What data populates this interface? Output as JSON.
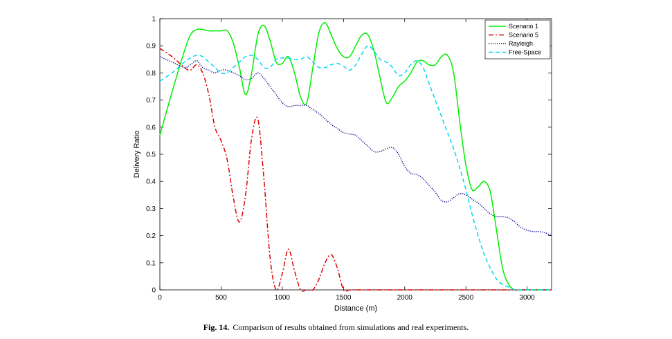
{
  "caption": {
    "label": "Fig. 14.",
    "text": "Comparison of results obtained from simulations and real experiments."
  },
  "chart_data": {
    "type": "line",
    "xlabel": "Distance (m)",
    "ylabel": "Delivery Ratio",
    "xlim": [
      0,
      3200
    ],
    "ylim": [
      0,
      1
    ],
    "xticks": [
      0,
      500,
      1000,
      1500,
      2000,
      2500,
      3000
    ],
    "yticks": [
      0,
      0.1,
      0.2,
      0.3,
      0.4,
      0.5,
      0.6,
      0.7,
      0.8,
      0.9,
      1
    ],
    "ytick_labels": [
      "0",
      "0.1",
      "0.2",
      "0.3",
      "0.4",
      "0.5",
      "0.6",
      "0.7",
      "0.8",
      "0.9",
      "1"
    ],
    "grid": false,
    "legend_position": "top-right",
    "series": [
      {
        "name": "Scenario 1",
        "color": "#00ee00",
        "style": "solid",
        "x": [
          0,
          100,
          200,
          250,
          300,
          350,
          400,
          450,
          500,
          550,
          600,
          650,
          700,
          750,
          800,
          850,
          900,
          950,
          1000,
          1050,
          1100,
          1150,
          1200,
          1250,
          1300,
          1350,
          1400,
          1450,
          1500,
          1550,
          1600,
          1650,
          1700,
          1750,
          1800,
          1850,
          1900,
          1950,
          2000,
          2050,
          2100,
          2150,
          2200,
          2250,
          2300,
          2350,
          2400,
          2450,
          2500,
          2550,
          2600,
          2650,
          2700,
          2750,
          2800,
          2850,
          2900,
          2950,
          3000,
          3050,
          3100,
          3150,
          3200
        ],
        "y": [
          0.57,
          0.73,
          0.88,
          0.94,
          0.96,
          0.96,
          0.955,
          0.955,
          0.955,
          0.955,
          0.91,
          0.82,
          0.72,
          0.8,
          0.94,
          0.975,
          0.92,
          0.84,
          0.835,
          0.86,
          0.8,
          0.71,
          0.69,
          0.82,
          0.95,
          0.985,
          0.94,
          0.89,
          0.86,
          0.86,
          0.9,
          0.94,
          0.94,
          0.88,
          0.78,
          0.69,
          0.71,
          0.75,
          0.77,
          0.8,
          0.84,
          0.845,
          0.83,
          0.83,
          0.86,
          0.865,
          0.8,
          0.62,
          0.46,
          0.37,
          0.38,
          0.4,
          0.36,
          0.22,
          0.08,
          0.02,
          0,
          0,
          0,
          0,
          0,
          0,
          0
        ]
      },
      {
        "name": "Scenario 5",
        "color": "#dd0000",
        "style": "dashdot",
        "x": [
          0,
          100,
          200,
          250,
          300,
          350,
          400,
          450,
          500,
          550,
          600,
          650,
          700,
          750,
          800,
          850,
          900,
          950,
          1000,
          1050,
          1100,
          1150,
          1200,
          1250,
          1300,
          1350,
          1400,
          1450,
          1500,
          1550,
          1600,
          1650,
          1700,
          1750,
          1800,
          1850,
          1900,
          1950,
          2000,
          2100,
          2200,
          2300,
          2400,
          2500,
          2600,
          2700,
          2800,
          2900,
          3000,
          3100,
          3200
        ],
        "y": [
          0.89,
          0.86,
          0.82,
          0.81,
          0.83,
          0.8,
          0.72,
          0.6,
          0.55,
          0.48,
          0.34,
          0.25,
          0.35,
          0.56,
          0.63,
          0.41,
          0.12,
          0,
          0.06,
          0.15,
          0.07,
          0,
          0,
          0,
          0.04,
          0.1,
          0.13,
          0.08,
          0,
          0,
          0,
          0,
          0,
          0,
          0,
          0,
          0,
          0,
          0,
          0,
          0,
          0,
          0,
          0,
          0,
          0,
          0,
          0,
          0,
          0,
          0
        ]
      },
      {
        "name": "Rayleigh",
        "color": "#000090",
        "style": "dotted",
        "x": [
          0,
          100,
          200,
          250,
          300,
          350,
          400,
          450,
          500,
          550,
          600,
          650,
          700,
          750,
          800,
          850,
          900,
          950,
          1000,
          1050,
          1100,
          1150,
          1200,
          1250,
          1300,
          1350,
          1400,
          1450,
          1500,
          1550,
          1600,
          1650,
          1700,
          1750,
          1800,
          1850,
          1900,
          1950,
          2000,
          2050,
          2100,
          2150,
          2200,
          2250,
          2300,
          2350,
          2400,
          2450,
          2500,
          2550,
          2600,
          2650,
          2700,
          2750,
          2800,
          2850,
          2900,
          2950,
          3000,
          3050,
          3100,
          3150,
          3200
        ],
        "y": [
          0.86,
          0.84,
          0.82,
          0.83,
          0.845,
          0.82,
          0.81,
          0.8,
          0.81,
          0.81,
          0.8,
          0.79,
          0.775,
          0.78,
          0.8,
          0.78,
          0.75,
          0.72,
          0.69,
          0.675,
          0.68,
          0.68,
          0.68,
          0.665,
          0.65,
          0.63,
          0.61,
          0.595,
          0.58,
          0.575,
          0.57,
          0.55,
          0.53,
          0.51,
          0.51,
          0.52,
          0.525,
          0.5,
          0.455,
          0.43,
          0.425,
          0.41,
          0.385,
          0.36,
          0.33,
          0.325,
          0.34,
          0.355,
          0.35,
          0.335,
          0.32,
          0.3,
          0.28,
          0.27,
          0.27,
          0.265,
          0.25,
          0.23,
          0.22,
          0.215,
          0.215,
          0.21,
          0.2
        ]
      },
      {
        "name": "Free-Space",
        "color": "#00d8f0",
        "style": "dashed",
        "x": [
          0,
          100,
          200,
          250,
          300,
          350,
          400,
          450,
          500,
          550,
          600,
          650,
          700,
          750,
          800,
          850,
          900,
          950,
          1000,
          1050,
          1100,
          1150,
          1200,
          1250,
          1300,
          1350,
          1400,
          1450,
          1500,
          1550,
          1600,
          1650,
          1700,
          1750,
          1800,
          1850,
          1900,
          1950,
          2000,
          2050,
          2100,
          2150,
          2200,
          2250,
          2300,
          2350,
          2400,
          2450,
          2500,
          2550,
          2600,
          2650,
          2700,
          2750,
          2800,
          2850,
          2900,
          2950,
          3000,
          3050,
          3100,
          3150,
          3200
        ],
        "y": [
          0.77,
          0.8,
          0.84,
          0.855,
          0.865,
          0.86,
          0.84,
          0.82,
          0.8,
          0.8,
          0.82,
          0.84,
          0.86,
          0.865,
          0.85,
          0.82,
          0.82,
          0.85,
          0.855,
          0.855,
          0.85,
          0.85,
          0.86,
          0.84,
          0.82,
          0.82,
          0.83,
          0.835,
          0.825,
          0.81,
          0.83,
          0.87,
          0.9,
          0.88,
          0.85,
          0.84,
          0.82,
          0.79,
          0.8,
          0.83,
          0.845,
          0.82,
          0.76,
          0.7,
          0.64,
          0.58,
          0.52,
          0.45,
          0.37,
          0.28,
          0.2,
          0.13,
          0.08,
          0.04,
          0.02,
          0.01,
          0,
          0,
          0,
          0,
          0,
          0,
          0
        ]
      }
    ]
  }
}
